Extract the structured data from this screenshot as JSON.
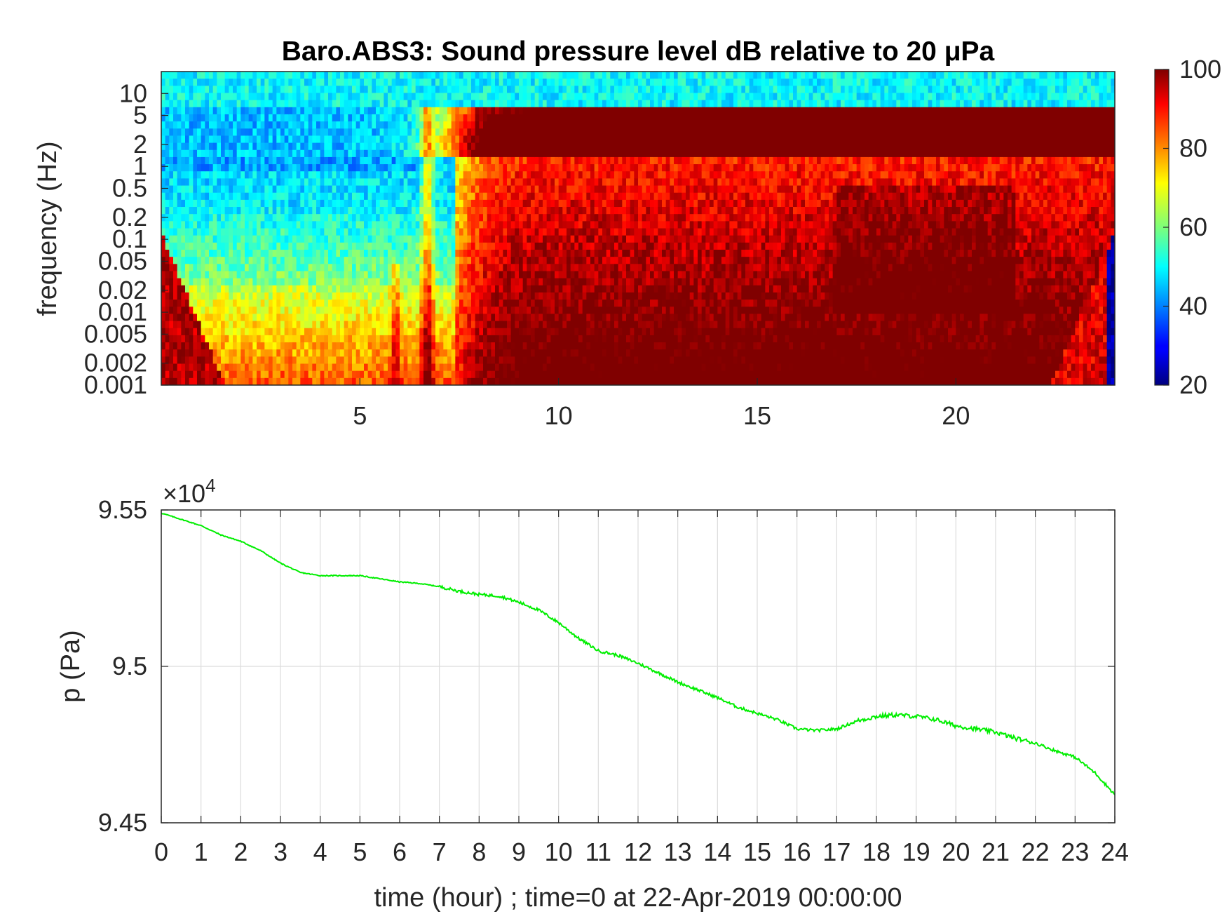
{
  "chart_data": [
    {
      "type": "heatmap",
      "title": "Baro.ABS3: Sound pressure level dB relative to 20 μPa",
      "xlabel": "",
      "ylabel": "frequency (Hz)",
      "x_tick_labels": [
        "5",
        "10",
        "15",
        "20"
      ],
      "x_ticks": [
        5,
        10,
        15,
        20
      ],
      "xlim": [
        0,
        24
      ],
      "y_scale": "log",
      "ylim": [
        0.001,
        20
      ],
      "y_tick_labels": [
        "10",
        "5",
        "2",
        "1",
        "0.5",
        "0.2",
        "0.1",
        "0.05",
        "0.02",
        "0.01",
        "0.005",
        "0.002",
        "0.001"
      ],
      "y_ticks": [
        10,
        5,
        2,
        1,
        0.5,
        0.2,
        0.1,
        0.05,
        0.02,
        0.01,
        0.005,
        0.002,
        0.001
      ],
      "colorbar": {
        "colormap": "jet",
        "range": [
          20,
          100
        ],
        "tick_labels": [
          "100",
          "80",
          "60",
          "40",
          "20"
        ],
        "ticks": [
          100,
          80,
          60,
          40,
          20
        ]
      },
      "grid": false
    },
    {
      "type": "line",
      "title": "",
      "xlabel": "time (hour) ; time=0 at 22-Apr-2019 00:00:00",
      "ylabel": "p (Pa)",
      "y_exponent_label": "×10",
      "y_exponent_power": "4",
      "xlim": [
        0,
        24
      ],
      "ylim": [
        94500,
        95500
      ],
      "x_tick_labels": [
        "0",
        "1",
        "2",
        "3",
        "4",
        "5",
        "6",
        "7",
        "8",
        "9",
        "10",
        "11",
        "12",
        "13",
        "14",
        "15",
        "16",
        "17",
        "18",
        "19",
        "20",
        "21",
        "22",
        "23",
        "24"
      ],
      "y_tick_labels": [
        "9.55",
        "9.5",
        "9.45"
      ],
      "y_ticks": [
        95500,
        95000,
        94500
      ],
      "grid": true,
      "series": [
        {
          "color": "#00ff00",
          "x": [
            0,
            0.5,
            1,
            1.5,
            2,
            2.5,
            3,
            3.5,
            4,
            4.5,
            5,
            5.5,
            6,
            6.5,
            7,
            7.5,
            8,
            8.5,
            9,
            9.5,
            10,
            10.5,
            11,
            11.5,
            12,
            12.5,
            13,
            13.5,
            14,
            14.5,
            15,
            15.5,
            16,
            16.5,
            17,
            17.5,
            18,
            18.5,
            19,
            19.5,
            20,
            20.5,
            21,
            21.5,
            22,
            22.5,
            23,
            23.5,
            24
          ],
          "y": [
            95490,
            95470,
            95450,
            95420,
            95400,
            95370,
            95330,
            95300,
            95290,
            95290,
            95290,
            95280,
            95270,
            95265,
            95255,
            95240,
            95230,
            95225,
            95205,
            95180,
            95140,
            95090,
            95050,
            95035,
            95010,
            94980,
            94950,
            94925,
            94900,
            94870,
            94850,
            94830,
            94800,
            94795,
            94800,
            94825,
            94840,
            94845,
            94840,
            94830,
            94810,
            94800,
            94790,
            94770,
            94755,
            94730,
            94710,
            94660,
            94590
          ]
        }
      ]
    }
  ]
}
